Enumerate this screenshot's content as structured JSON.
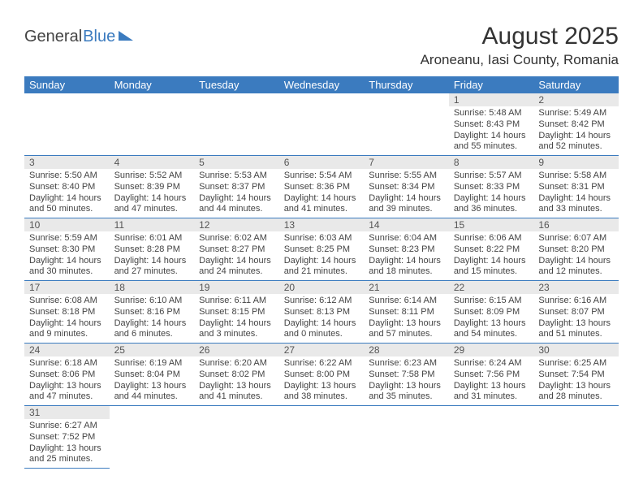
{
  "logo": {
    "text1": "General",
    "text2": "Blue"
  },
  "title": "August 2025",
  "location": "Aroneanu, Iasi County, Romania",
  "colors": {
    "header_bg": "#3b7bbf",
    "header_text": "#ffffff",
    "daynum_bg": "#e9e9e9",
    "row_border": "#3b7bbf",
    "text": "#444444",
    "background": "#ffffff"
  },
  "typography": {
    "title_fontsize": 30,
    "location_fontsize": 17,
    "header_fontsize": 13,
    "cell_fontsize": 11
  },
  "day_headers": [
    "Sunday",
    "Monday",
    "Tuesday",
    "Wednesday",
    "Thursday",
    "Friday",
    "Saturday"
  ],
  "weeks": [
    [
      null,
      null,
      null,
      null,
      null,
      {
        "n": "1",
        "sr": "Sunrise: 5:48 AM",
        "ss": "Sunset: 8:43 PM",
        "dl1": "Daylight: 14 hours",
        "dl2": "and 55 minutes."
      },
      {
        "n": "2",
        "sr": "Sunrise: 5:49 AM",
        "ss": "Sunset: 8:42 PM",
        "dl1": "Daylight: 14 hours",
        "dl2": "and 52 minutes."
      }
    ],
    [
      {
        "n": "3",
        "sr": "Sunrise: 5:50 AM",
        "ss": "Sunset: 8:40 PM",
        "dl1": "Daylight: 14 hours",
        "dl2": "and 50 minutes."
      },
      {
        "n": "4",
        "sr": "Sunrise: 5:52 AM",
        "ss": "Sunset: 8:39 PM",
        "dl1": "Daylight: 14 hours",
        "dl2": "and 47 minutes."
      },
      {
        "n": "5",
        "sr": "Sunrise: 5:53 AM",
        "ss": "Sunset: 8:37 PM",
        "dl1": "Daylight: 14 hours",
        "dl2": "and 44 minutes."
      },
      {
        "n": "6",
        "sr": "Sunrise: 5:54 AM",
        "ss": "Sunset: 8:36 PM",
        "dl1": "Daylight: 14 hours",
        "dl2": "and 41 minutes."
      },
      {
        "n": "7",
        "sr": "Sunrise: 5:55 AM",
        "ss": "Sunset: 8:34 PM",
        "dl1": "Daylight: 14 hours",
        "dl2": "and 39 minutes."
      },
      {
        "n": "8",
        "sr": "Sunrise: 5:57 AM",
        "ss": "Sunset: 8:33 PM",
        "dl1": "Daylight: 14 hours",
        "dl2": "and 36 minutes."
      },
      {
        "n": "9",
        "sr": "Sunrise: 5:58 AM",
        "ss": "Sunset: 8:31 PM",
        "dl1": "Daylight: 14 hours",
        "dl2": "and 33 minutes."
      }
    ],
    [
      {
        "n": "10",
        "sr": "Sunrise: 5:59 AM",
        "ss": "Sunset: 8:30 PM",
        "dl1": "Daylight: 14 hours",
        "dl2": "and 30 minutes."
      },
      {
        "n": "11",
        "sr": "Sunrise: 6:01 AM",
        "ss": "Sunset: 8:28 PM",
        "dl1": "Daylight: 14 hours",
        "dl2": "and 27 minutes."
      },
      {
        "n": "12",
        "sr": "Sunrise: 6:02 AM",
        "ss": "Sunset: 8:27 PM",
        "dl1": "Daylight: 14 hours",
        "dl2": "and 24 minutes."
      },
      {
        "n": "13",
        "sr": "Sunrise: 6:03 AM",
        "ss": "Sunset: 8:25 PM",
        "dl1": "Daylight: 14 hours",
        "dl2": "and 21 minutes."
      },
      {
        "n": "14",
        "sr": "Sunrise: 6:04 AM",
        "ss": "Sunset: 8:23 PM",
        "dl1": "Daylight: 14 hours",
        "dl2": "and 18 minutes."
      },
      {
        "n": "15",
        "sr": "Sunrise: 6:06 AM",
        "ss": "Sunset: 8:22 PM",
        "dl1": "Daylight: 14 hours",
        "dl2": "and 15 minutes."
      },
      {
        "n": "16",
        "sr": "Sunrise: 6:07 AM",
        "ss": "Sunset: 8:20 PM",
        "dl1": "Daylight: 14 hours",
        "dl2": "and 12 minutes."
      }
    ],
    [
      {
        "n": "17",
        "sr": "Sunrise: 6:08 AM",
        "ss": "Sunset: 8:18 PM",
        "dl1": "Daylight: 14 hours",
        "dl2": "and 9 minutes."
      },
      {
        "n": "18",
        "sr": "Sunrise: 6:10 AM",
        "ss": "Sunset: 8:16 PM",
        "dl1": "Daylight: 14 hours",
        "dl2": "and 6 minutes."
      },
      {
        "n": "19",
        "sr": "Sunrise: 6:11 AM",
        "ss": "Sunset: 8:15 PM",
        "dl1": "Daylight: 14 hours",
        "dl2": "and 3 minutes."
      },
      {
        "n": "20",
        "sr": "Sunrise: 6:12 AM",
        "ss": "Sunset: 8:13 PM",
        "dl1": "Daylight: 14 hours",
        "dl2": "and 0 minutes."
      },
      {
        "n": "21",
        "sr": "Sunrise: 6:14 AM",
        "ss": "Sunset: 8:11 PM",
        "dl1": "Daylight: 13 hours",
        "dl2": "and 57 minutes."
      },
      {
        "n": "22",
        "sr": "Sunrise: 6:15 AM",
        "ss": "Sunset: 8:09 PM",
        "dl1": "Daylight: 13 hours",
        "dl2": "and 54 minutes."
      },
      {
        "n": "23",
        "sr": "Sunrise: 6:16 AM",
        "ss": "Sunset: 8:07 PM",
        "dl1": "Daylight: 13 hours",
        "dl2": "and 51 minutes."
      }
    ],
    [
      {
        "n": "24",
        "sr": "Sunrise: 6:18 AM",
        "ss": "Sunset: 8:06 PM",
        "dl1": "Daylight: 13 hours",
        "dl2": "and 47 minutes."
      },
      {
        "n": "25",
        "sr": "Sunrise: 6:19 AM",
        "ss": "Sunset: 8:04 PM",
        "dl1": "Daylight: 13 hours",
        "dl2": "and 44 minutes."
      },
      {
        "n": "26",
        "sr": "Sunrise: 6:20 AM",
        "ss": "Sunset: 8:02 PM",
        "dl1": "Daylight: 13 hours",
        "dl2": "and 41 minutes."
      },
      {
        "n": "27",
        "sr": "Sunrise: 6:22 AM",
        "ss": "Sunset: 8:00 PM",
        "dl1": "Daylight: 13 hours",
        "dl2": "and 38 minutes."
      },
      {
        "n": "28",
        "sr": "Sunrise: 6:23 AM",
        "ss": "Sunset: 7:58 PM",
        "dl1": "Daylight: 13 hours",
        "dl2": "and 35 minutes."
      },
      {
        "n": "29",
        "sr": "Sunrise: 6:24 AM",
        "ss": "Sunset: 7:56 PM",
        "dl1": "Daylight: 13 hours",
        "dl2": "and 31 minutes."
      },
      {
        "n": "30",
        "sr": "Sunrise: 6:25 AM",
        "ss": "Sunset: 7:54 PM",
        "dl1": "Daylight: 13 hours",
        "dl2": "and 28 minutes."
      }
    ],
    [
      {
        "n": "31",
        "sr": "Sunrise: 6:27 AM",
        "ss": "Sunset: 7:52 PM",
        "dl1": "Daylight: 13 hours",
        "dl2": "and 25 minutes."
      },
      null,
      null,
      null,
      null,
      null,
      null
    ]
  ]
}
